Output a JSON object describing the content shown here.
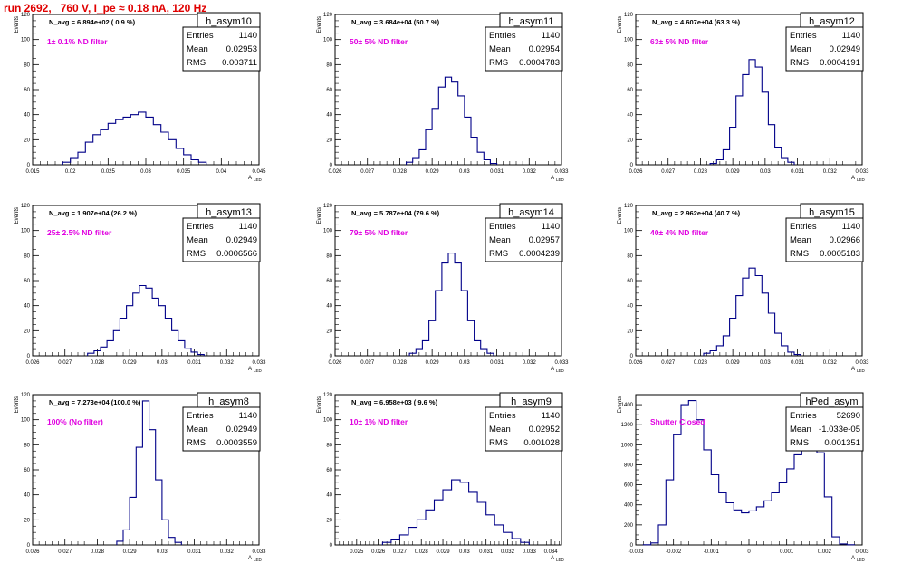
{
  "title": "run 2692,   760 V, I_pe ≈ 0.18 nA, 120 Hz",
  "axis_labels": {
    "y": "Events",
    "x": "A",
    "x_sub": "LED"
  },
  "stats_labels": {
    "entries": "Entries",
    "mean": "Mean",
    "rms": "RMS"
  },
  "chart_data": [
    {
      "type": "histogram",
      "name": "h_asym10",
      "navg": "N_avg = 6.894e+02 ( 0.9 %)",
      "filter": "1± 0.1% ND filter",
      "entries": "1140",
      "mean": "0.02953",
      "rms": "0.003711",
      "xlim": [
        0.015,
        0.045
      ],
      "ylim": [
        0,
        120
      ],
      "xticks": [
        0.015,
        0.02,
        0.025,
        0.03,
        0.035,
        0.04,
        0.045
      ],
      "xticklabels": [
        "0.015",
        "0.02",
        "0.025",
        "0.03",
        "0.035",
        "0.04",
        "0.045"
      ],
      "yticks": [
        0,
        20,
        40,
        60,
        80,
        100,
        120
      ],
      "x": [
        0.0195,
        0.0205,
        0.0215,
        0.0225,
        0.0235,
        0.0245,
        0.0255,
        0.0265,
        0.0275,
        0.0285,
        0.0295,
        0.0305,
        0.0315,
        0.0325,
        0.0335,
        0.0345,
        0.0355,
        0.0365,
        0.0375
      ],
      "values": [
        2,
        5,
        10,
        18,
        24,
        28,
        33,
        36,
        38,
        40,
        42,
        38,
        32,
        26,
        20,
        13,
        8,
        4,
        2
      ]
    },
    {
      "type": "histogram",
      "name": "h_asym11",
      "navg": "N_avg = 3.684e+04 (50.7 %)",
      "filter": "50± 5% ND filter",
      "entries": "1140",
      "mean": "0.02954",
      "rms": "0.0004783",
      "xlim": [
        0.026,
        0.033
      ],
      "ylim": [
        0,
        120
      ],
      "xticks": [
        0.026,
        0.027,
        0.028,
        0.029,
        0.03,
        0.031,
        0.032,
        0.033
      ],
      "xticklabels": [
        "0.026",
        "0.027",
        "0.028",
        "0.029",
        "0.03",
        "0.031",
        "0.032",
        "0.033"
      ],
      "yticks": [
        0,
        20,
        40,
        60,
        80,
        100,
        120
      ],
      "x": [
        0.0283,
        0.0285,
        0.0287,
        0.0289,
        0.0291,
        0.0293,
        0.0295,
        0.0297,
        0.0299,
        0.0301,
        0.0303,
        0.0305,
        0.0307,
        0.0309
      ],
      "values": [
        2,
        5,
        12,
        28,
        45,
        62,
        70,
        66,
        55,
        38,
        22,
        10,
        4,
        1
      ]
    },
    {
      "type": "histogram",
      "name": "h_asym12",
      "navg": "N_avg = 4.607e+04 (63.3 %)",
      "filter": "63± 5% ND filter",
      "entries": "1140",
      "mean": "0.02949",
      "rms": "0.0004191",
      "xlim": [
        0.026,
        0.033
      ],
      "ylim": [
        0,
        120
      ],
      "xticks": [
        0.026,
        0.027,
        0.028,
        0.029,
        0.03,
        0.031,
        0.032,
        0.033
      ],
      "xticklabels": [
        "0.026",
        "0.027",
        "0.028",
        "0.029",
        "0.03",
        "0.031",
        "0.032",
        "0.033"
      ],
      "yticks": [
        0,
        20,
        40,
        60,
        80,
        100,
        120
      ],
      "x": [
        0.0284,
        0.0286,
        0.0288,
        0.029,
        0.0292,
        0.0294,
        0.0296,
        0.0298,
        0.03,
        0.0302,
        0.0304,
        0.0306,
        0.0308
      ],
      "values": [
        1,
        4,
        12,
        30,
        55,
        72,
        84,
        78,
        58,
        32,
        14,
        5,
        2
      ]
    },
    {
      "type": "histogram",
      "name": "h_asym13",
      "navg": "N_avg = 1.907e+04 (26.2 %)",
      "filter": "25± 2.5% ND filter",
      "entries": "1140",
      "mean": "0.02949",
      "rms": "0.0006566",
      "xlim": [
        0.026,
        0.033
      ],
      "ylim": [
        0,
        120
      ],
      "xticks": [
        0.026,
        0.027,
        0.028,
        0.029,
        0.03,
        0.031,
        0.032,
        0.033
      ],
      "xticklabels": [
        "0.026",
        "0.027",
        "0.028",
        "0.029",
        "0.03",
        "0.031",
        "0.032",
        "0.033"
      ],
      "yticks": [
        0,
        20,
        40,
        60,
        80,
        100,
        120
      ],
      "x": [
        0.0278,
        0.028,
        0.0282,
        0.0284,
        0.0286,
        0.0288,
        0.029,
        0.0292,
        0.0294,
        0.0296,
        0.0298,
        0.03,
        0.0302,
        0.0304,
        0.0306,
        0.0308,
        0.031,
        0.0312
      ],
      "values": [
        2,
        4,
        7,
        12,
        20,
        30,
        40,
        50,
        56,
        54,
        46,
        40,
        30,
        20,
        12,
        6,
        3,
        1
      ]
    },
    {
      "type": "histogram",
      "name": "h_asym14",
      "navg": "N_avg = 5.787e+04 (79.6 %)",
      "filter": "79± 5% ND filter",
      "entries": "1140",
      "mean": "0.02957",
      "rms": "0.0004239",
      "xlim": [
        0.026,
        0.033
      ],
      "ylim": [
        0,
        120
      ],
      "xticks": [
        0.026,
        0.027,
        0.028,
        0.029,
        0.03,
        0.031,
        0.032,
        0.033
      ],
      "xticklabels": [
        "0.026",
        "0.027",
        "0.028",
        "0.029",
        "0.03",
        "0.031",
        "0.032",
        "0.033"
      ],
      "yticks": [
        0,
        20,
        40,
        60,
        80,
        100,
        120
      ],
      "x": [
        0.0284,
        0.0286,
        0.0288,
        0.029,
        0.0292,
        0.0294,
        0.0296,
        0.0298,
        0.03,
        0.0302,
        0.0304,
        0.0306,
        0.0308
      ],
      "values": [
        2,
        5,
        12,
        28,
        52,
        74,
        82,
        74,
        52,
        28,
        12,
        5,
        2
      ]
    },
    {
      "type": "histogram",
      "name": "h_asym15",
      "navg": "N_avg = 2.962e+04 (40.7 %)",
      "filter": "40± 4% ND filter",
      "entries": "1140",
      "mean": "0.02966",
      "rms": "0.0005183",
      "xlim": [
        0.026,
        0.033
      ],
      "ylim": [
        0,
        120
      ],
      "xticks": [
        0.026,
        0.027,
        0.028,
        0.029,
        0.03,
        0.031,
        0.032,
        0.033
      ],
      "xticklabels": [
        "0.026",
        "0.027",
        "0.028",
        "0.029",
        "0.03",
        "0.031",
        "0.032",
        "0.033"
      ],
      "yticks": [
        0,
        20,
        40,
        60,
        80,
        100,
        120
      ],
      "x": [
        0.0282,
        0.0284,
        0.0286,
        0.0288,
        0.029,
        0.0292,
        0.0294,
        0.0296,
        0.0298,
        0.03,
        0.0302,
        0.0304,
        0.0306,
        0.0308,
        0.031
      ],
      "values": [
        2,
        4,
        8,
        16,
        30,
        48,
        62,
        70,
        64,
        50,
        34,
        18,
        8,
        3,
        1
      ]
    },
    {
      "type": "histogram",
      "name": "h_asym8",
      "navg": "N_avg = 7.273e+04 (100.0 %)",
      "filter": "100% (No filter)",
      "entries": "1140",
      "mean": "0.02949",
      "rms": "0.0003559",
      "xlim": [
        0.026,
        0.033
      ],
      "ylim": [
        0,
        120
      ],
      "xticks": [
        0.026,
        0.027,
        0.028,
        0.029,
        0.03,
        0.031,
        0.032,
        0.033
      ],
      "xticklabels": [
        "0.026",
        "0.027",
        "0.028",
        "0.029",
        "0.03",
        "0.031",
        "0.032",
        "0.033"
      ],
      "yticks": [
        0,
        20,
        40,
        60,
        80,
        100,
        120
      ],
      "x": [
        0.0287,
        0.0289,
        0.0291,
        0.0293,
        0.0295,
        0.0297,
        0.0299,
        0.0301,
        0.0303,
        0.0305
      ],
      "values": [
        3,
        12,
        38,
        78,
        115,
        92,
        52,
        20,
        6,
        2
      ]
    },
    {
      "type": "histogram",
      "name": "h_asym9",
      "navg": "N_avg = 6.958e+03 ( 9.6 %)",
      "filter": "10± 1% ND filter",
      "entries": "1140",
      "mean": "0.02952",
      "rms": "0.001028",
      "xlim": [
        0.024,
        0.0345
      ],
      "ylim": [
        0,
        120
      ],
      "xticks": [
        0.025,
        0.026,
        0.027,
        0.028,
        0.029,
        0.03,
        0.031,
        0.032,
        0.033,
        0.034
      ],
      "xticklabels": [
        "0.025",
        "0.026",
        "0.027",
        "0.028",
        "0.029",
        "0.03",
        "0.031",
        "0.032",
        "0.033",
        "0.034"
      ],
      "yticks": [
        0,
        20,
        40,
        60,
        80,
        100,
        120
      ],
      "x": [
        0.0264,
        0.0268,
        0.0272,
        0.0276,
        0.028,
        0.0284,
        0.0288,
        0.0292,
        0.0296,
        0.03,
        0.0304,
        0.0308,
        0.0312,
        0.0316,
        0.032,
        0.0324,
        0.0328
      ],
      "values": [
        2,
        4,
        8,
        14,
        20,
        28,
        36,
        44,
        52,
        50,
        42,
        34,
        24,
        16,
        10,
        5,
        2
      ]
    },
    {
      "type": "histogram",
      "name": "hPed_asym",
      "navg": "",
      "filter": "Shutter Closed",
      "entries": "52690",
      "mean": "-1.033e-05",
      "rms": "0.001351",
      "xlim": [
        -0.003,
        0.003
      ],
      "ylim": [
        0,
        1500
      ],
      "xticks": [
        -0.003,
        -0.002,
        -0.001,
        0,
        0.001,
        0.002,
        0.003
      ],
      "xticklabels": [
        "-0.003",
        "-0.002",
        "-0.001",
        "0",
        "0.001",
        "0.002",
        "0.003"
      ],
      "yticks": [
        0,
        200,
        400,
        600,
        800,
        1000,
        1200,
        1400
      ],
      "x": [
        -0.0027,
        -0.0025,
        -0.0023,
        -0.0021,
        -0.0019,
        -0.0017,
        -0.0015,
        -0.0013,
        -0.0011,
        -0.0009,
        -0.0007,
        -0.0005,
        -0.0003,
        -0.0001,
        0.0001,
        0.0003,
        0.0005,
        0.0007,
        0.0009,
        0.0011,
        0.0013,
        0.0015,
        0.0017,
        0.0019,
        0.0021,
        0.0023,
        0.0025,
        0.0027
      ],
      "values": [
        2,
        20,
        200,
        650,
        1100,
        1400,
        1440,
        1250,
        950,
        700,
        520,
        420,
        350,
        320,
        340,
        380,
        440,
        520,
        620,
        760,
        900,
        1000,
        1020,
        920,
        480,
        80,
        10,
        2
      ]
    }
  ]
}
